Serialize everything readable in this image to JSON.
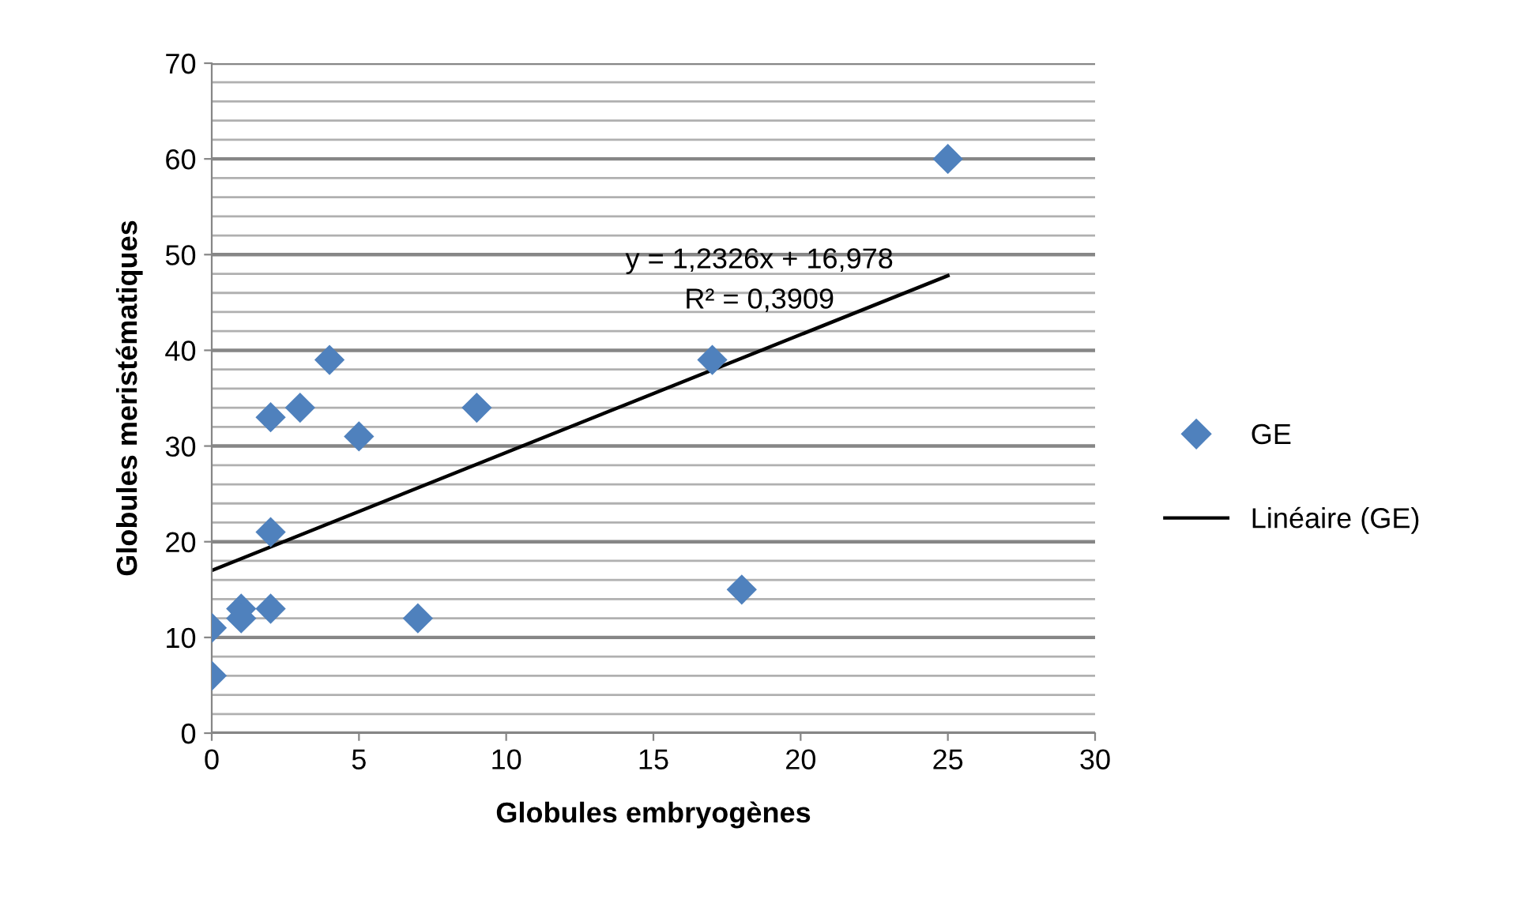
{
  "chart_data": {
    "type": "scatter",
    "xlabel": "Globules embryogènes",
    "ylabel": "Globules meristématiques",
    "xlim": [
      0,
      30
    ],
    "xticks": [
      0,
      5,
      10,
      15,
      20,
      25,
      30
    ],
    "ylim": [
      0,
      70
    ],
    "yticks": [
      0,
      {
        "value": 2,
        "label": null
      },
      {
        "value": 4,
        "label": null
      },
      {
        "value": 6,
        "label": null
      },
      {
        "value": 8,
        "label": null
      },
      10,
      {
        "value": 12,
        "label": null
      },
      {
        "value": 14,
        "label": null
      },
      {
        "value": 16,
        "label": null
      },
      {
        "value": 18,
        "label": null
      },
      20,
      {
        "value": 22,
        "label": null
      },
      {
        "value": 24,
        "label": null
      },
      {
        "value": 26,
        "label": null
      },
      {
        "value": 28,
        "label": null
      },
      30,
      {
        "value": 32,
        "label": null
      },
      {
        "value": 34,
        "label": null
      },
      {
        "value": 36,
        "label": null
      },
      {
        "value": 38,
        "label": null
      },
      40,
      {
        "value": 42,
        "label": null
      },
      {
        "value": 44,
        "label": null
      },
      {
        "value": 46,
        "label": null
      },
      {
        "value": 48,
        "label": null
      },
      50,
      {
        "value": 52,
        "label": null
      },
      {
        "value": 54,
        "label": null
      },
      {
        "value": 56,
        "label": null
      },
      {
        "value": 58,
        "label": null
      },
      60,
      {
        "value": 62,
        "label": null
      },
      {
        "value": 64,
        "label": null
      },
      {
        "value": 66,
        "label": null
      },
      {
        "value": 68,
        "label": null
      },
      70
    ],
    "grid": "y",
    "legend": "right",
    "annotations": [
      "y = 1,2326x + 16,978",
      "R² = 0,3909"
    ],
    "series": [
      {
        "name": "GE",
        "marker": "diamond",
        "color": "#4f81bd",
        "x": [
          0,
          0,
          1,
          1,
          2,
          2,
          2,
          3,
          4,
          5,
          7,
          9,
          17,
          18,
          25
        ],
        "values": [
          6,
          11,
          13,
          12,
          13,
          21,
          33,
          34,
          39,
          31,
          12,
          34,
          39,
          15,
          60
        ]
      },
      {
        "name": "Linéaire (GE)",
        "type": "line",
        "color": "#000000",
        "x": [
          0,
          25
        ],
        "values": [
          17.0,
          47.8
        ]
      }
    ]
  }
}
